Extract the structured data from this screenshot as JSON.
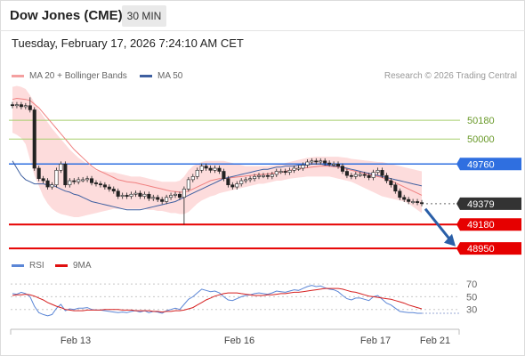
{
  "header": {
    "title": "Dow Jones (CME)",
    "timeframe": "30 MIN",
    "datetime": "Tuesday, February 17, 2026 7:24:10 AM CET"
  },
  "legend": {
    "ma20": "MA 20 + Bollinger Bands",
    "ma50": "MA 50",
    "research": "Research © 2026 Trading Central",
    "rsi": "RSI",
    "rsi_ma": "9MA"
  },
  "colors": {
    "band_fill": "#fddcdc",
    "ma20": "#f08080",
    "ma50": "#3e5fa0",
    "candle": "#222222",
    "resistance_green": "#a7cf6d",
    "pivot_blue": "#2f6fe0",
    "support_red": "#e60000",
    "last_price": "#333333",
    "arrow": "#2a5fa8",
    "rsi": "#5b86d6",
    "rsi_ma": "#d62020"
  },
  "chart_data": [
    {
      "type": "candlestick",
      "x_labels": [
        "Feb 13",
        "Feb 16",
        "Feb 17",
        "Feb 21"
      ],
      "ylim": [
        48900,
        50480
      ],
      "levels": [
        {
          "value": 50180,
          "label": "50180",
          "kind": "resistance",
          "style": "thin"
        },
        {
          "value": 50000,
          "label": "50000",
          "kind": "resistance",
          "style": "thin"
        },
        {
          "value": 49760,
          "label": "49760",
          "kind": "pivot",
          "style": "main"
        },
        {
          "value": 49379,
          "label": "49379",
          "kind": "last",
          "style": "dotted"
        },
        {
          "value": 49180,
          "label": "49180",
          "kind": "support",
          "style": "main"
        },
        {
          "value": 48950,
          "label": "48950",
          "kind": "support",
          "style": "main"
        }
      ],
      "close": [
        50320,
        50330,
        50310,
        50320,
        50280,
        49720,
        49620,
        49600,
        49540,
        49560,
        49700,
        49760,
        49560,
        49600,
        49590,
        49610,
        49610,
        49620,
        49580,
        49570,
        49560,
        49540,
        49520,
        49500,
        49450,
        49460,
        49450,
        49470,
        49480,
        49450,
        49470,
        49430,
        49440,
        49420,
        49400,
        49440,
        49460,
        49470,
        49440,
        49520,
        49610,
        49640,
        49700,
        49740,
        49720,
        49700,
        49720,
        49690,
        49620,
        49560,
        49540,
        49570,
        49600,
        49610,
        49620,
        49640,
        49650,
        49650,
        49640,
        49660,
        49690,
        49690,
        49680,
        49700,
        49720,
        49720,
        49750,
        49780,
        49790,
        49780,
        49790,
        49770,
        49760,
        49760,
        49740,
        49690,
        49650,
        49640,
        49660,
        49660,
        49650,
        49630,
        49680,
        49700,
        49650,
        49600,
        49560,
        49500,
        49440,
        49420,
        49400,
        49400,
        49390,
        49380
      ],
      "high_extremes": [
        {
          "index": 4,
          "value": 50400
        }
      ],
      "low_extremes": [
        {
          "index": 39,
          "value": 49180
        }
      ],
      "ma20": [
        50380,
        50390,
        50385,
        50380,
        50370,
        50335,
        50300,
        50250,
        50200,
        50150,
        50100,
        50050,
        50000,
        49950,
        49900,
        49860,
        49820,
        49780,
        49740,
        49710,
        49690,
        49670,
        49650,
        49630,
        49610,
        49600,
        49590,
        49585,
        49580,
        49570,
        49560,
        49550,
        49540,
        49530,
        49520,
        49510,
        49500,
        49495,
        49490,
        49490,
        49500,
        49520,
        49540,
        49560,
        49580,
        49600,
        49610,
        49620,
        49620,
        49625,
        49630,
        49635,
        49640,
        49645,
        49650,
        49655,
        49660,
        49660,
        49665,
        49670,
        49675,
        49680,
        49690,
        49700,
        49710,
        49715,
        49720,
        49725,
        49730,
        49735,
        49740,
        49740,
        49740,
        49735,
        49730,
        49720,
        49710,
        49700,
        49690,
        49680,
        49670,
        49660,
        49650,
        49640,
        49630,
        49615,
        49600,
        49580,
        49560,
        49540,
        49520,
        49500,
        49480,
        49460
      ],
      "bb_upper": [
        50500,
        50510,
        50500,
        50480,
        50420,
        50350,
        50280,
        50220,
        50160,
        50100,
        50050,
        50000,
        49950,
        49900,
        49860,
        49820,
        49790,
        49760,
        49730,
        49700,
        49690,
        49690,
        49680,
        49680,
        49670,
        49660,
        49650,
        49640,
        49640,
        49640,
        49630,
        49620,
        49610,
        49600,
        49590,
        49590,
        49590,
        49590,
        49600,
        49640,
        49700,
        49740,
        49760,
        49780,
        49790,
        49790,
        49790,
        49790,
        49790,
        49780,
        49770,
        49760,
        49750,
        49740,
        49740,
        49740,
        49740,
        49740,
        49740,
        49745,
        49750,
        49760,
        49770,
        49780,
        49790,
        49800,
        49810,
        49820,
        49825,
        49830,
        49830,
        49830,
        49830,
        49830,
        49830,
        49825,
        49820,
        49810,
        49805,
        49800,
        49795,
        49790,
        49785,
        49780,
        49780,
        49770,
        49760,
        49750,
        49740,
        49730,
        49720,
        49710,
        49700,
        49690
      ],
      "bb_lower": [
        50060,
        50040,
        50010,
        49950,
        49800,
        49650,
        49550,
        49450,
        49380,
        49330,
        49300,
        49280,
        49270,
        49260,
        49250,
        49250,
        49260,
        49270,
        49280,
        49290,
        49300,
        49310,
        49320,
        49330,
        49330,
        49330,
        49330,
        49330,
        49330,
        49330,
        49330,
        49320,
        49320,
        49310,
        49310,
        49300,
        49290,
        49290,
        49280,
        49280,
        49300,
        49340,
        49380,
        49410,
        49430,
        49450,
        49460,
        49480,
        49490,
        49500,
        49510,
        49520,
        49530,
        49540,
        49550,
        49560,
        49570,
        49570,
        49580,
        49590,
        49600,
        49600,
        49610,
        49620,
        49625,
        49630,
        49635,
        49640,
        49640,
        49640,
        49640,
        49640,
        49640,
        49630,
        49620,
        49610,
        49600,
        49590,
        49570,
        49550,
        49530,
        49510,
        49490,
        49470,
        49450,
        49440,
        49430,
        49420,
        49410,
        49400,
        49380,
        49350,
        49320,
        49290
      ],
      "ma50": [
        49790,
        49720,
        49650,
        49610,
        49590,
        49570,
        49570,
        49570,
        49560,
        49560,
        49540,
        49520,
        49500,
        49490,
        49470,
        49460,
        49440,
        49420,
        49400,
        49390,
        49380,
        49370,
        49360,
        49350,
        49340,
        49330,
        49320,
        49320,
        49320,
        49320,
        49330,
        49340,
        49350,
        49360,
        49370,
        49380,
        49390,
        49400,
        49420,
        49440,
        49460,
        49480,
        49500,
        49520,
        49540,
        49560,
        49580,
        49600,
        49620,
        49630,
        49640,
        49650,
        49660,
        49670,
        49680,
        49690,
        49700,
        49710,
        49710,
        49720,
        49730,
        49730,
        49740,
        49740,
        49740,
        49750,
        49750,
        49750,
        49760,
        49760,
        49760,
        49750,
        49750,
        49740,
        49740,
        49730,
        49720,
        49710,
        49700,
        49690,
        49680,
        49670,
        49660,
        49650,
        49640,
        49630,
        49620,
        49610,
        49600,
        49590,
        49580,
        49570,
        49560,
        49550
      ]
    },
    {
      "type": "line",
      "title": "RSI",
      "ylim": [
        10,
        80
      ],
      "y_ticks": [
        70,
        50,
        30
      ],
      "series": [
        {
          "name": "RSI",
          "values": [
            55,
            54,
            57,
            55,
            50,
            35,
            25,
            22,
            20,
            22,
            32,
            38,
            28,
            31,
            30,
            32,
            32,
            33,
            30,
            29,
            29,
            28,
            27,
            26,
            25,
            26,
            25,
            27,
            28,
            26,
            28,
            25,
            27,
            26,
            24,
            28,
            30,
            32,
            30,
            38,
            46,
            50,
            56,
            62,
            60,
            58,
            59,
            56,
            50,
            45,
            44,
            47,
            50,
            52,
            53,
            55,
            56,
            55,
            54,
            56,
            59,
            58,
            57,
            59,
            61,
            60,
            63,
            66,
            68,
            66,
            67,
            64,
            62,
            61,
            58,
            52,
            47,
            45,
            48,
            48,
            46,
            44,
            50,
            52,
            46,
            40,
            37,
            32,
            27,
            26,
            25,
            25,
            24,
            24
          ]
        },
        {
          "name": "9MA",
          "values": [
            52,
            53,
            53,
            54,
            53,
            51,
            48,
            45,
            41,
            38,
            35,
            33,
            30,
            29,
            28,
            28,
            28,
            29,
            29,
            29,
            29,
            30,
            30,
            30,
            30,
            29,
            29,
            29,
            28,
            28,
            28,
            28,
            27,
            27,
            26,
            27,
            27,
            28,
            28,
            29,
            31,
            33,
            37,
            41,
            45,
            48,
            51,
            53,
            55,
            56,
            56,
            56,
            55,
            54,
            53,
            52,
            52,
            52,
            53,
            53,
            54,
            55,
            55,
            56,
            57,
            57,
            58,
            59,
            60,
            61,
            62,
            63,
            63,
            63,
            63,
            62,
            60,
            58,
            57,
            55,
            53,
            51,
            50,
            49,
            48,
            47,
            46,
            44,
            42,
            40,
            37,
            35,
            33,
            31
          ]
        }
      ]
    }
  ]
}
